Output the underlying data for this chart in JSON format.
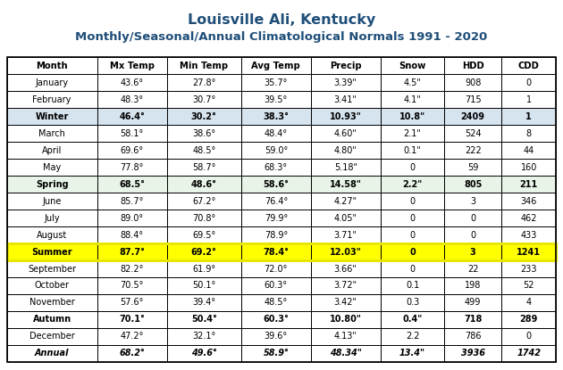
{
  "title1": "Louisville Ali, Kentucky",
  "title2": "Monthly/Seasonal/Annual Climatological Normals 1991 - 2020",
  "headers": [
    "Month",
    "Mx Temp",
    "Min Temp",
    "Avg Temp",
    "Precip",
    "Snow",
    "HDD",
    "CDD"
  ],
  "rows": [
    [
      "January",
      "43.6°",
      "27.8°",
      "35.7°",
      "3.39\"",
      "4.5\"",
      "908",
      "0"
    ],
    [
      "February",
      "48.3°",
      "30.7°",
      "39.5°",
      "3.41\"",
      "4.1\"",
      "715",
      "1"
    ],
    [
      "Winter",
      "46.4°",
      "30.2°",
      "38.3°",
      "10.93\"",
      "10.8\"",
      "2409",
      "1"
    ],
    [
      "March",
      "58.1°",
      "38.6°",
      "48.4°",
      "4.60\"",
      "2.1\"",
      "524",
      "8"
    ],
    [
      "April",
      "69.6°",
      "48.5°",
      "59.0°",
      "4.80\"",
      "0.1\"",
      "222",
      "44"
    ],
    [
      "May",
      "77.8°",
      "58.7°",
      "68.3°",
      "5.18\"",
      "0",
      "59",
      "160"
    ],
    [
      "Spring",
      "68.5°",
      "48.6°",
      "58.6°",
      "14.58\"",
      "2.2\"",
      "805",
      "211"
    ],
    [
      "June",
      "85.7°",
      "67.2°",
      "76.4°",
      "4.27\"",
      "0",
      "3",
      "346"
    ],
    [
      "July",
      "89.0°",
      "70.8°",
      "79.9°",
      "4.05\"",
      "0",
      "0",
      "462"
    ],
    [
      "August",
      "88.4°",
      "69.5°",
      "78.9°",
      "3.71\"",
      "0",
      "0",
      "433"
    ],
    [
      "Summer",
      "87.7°",
      "69.2°",
      "78.4°",
      "12.03\"",
      "0",
      "3",
      "1241"
    ],
    [
      "September",
      "82.2°",
      "61.9°",
      "72.0°",
      "3.66\"",
      "0",
      "22",
      "233"
    ],
    [
      "October",
      "70.5°",
      "50.1°",
      "60.3°",
      "3.72\"",
      "0.1",
      "198",
      "52"
    ],
    [
      "November",
      "57.6°",
      "39.4°",
      "48.5°",
      "3.42\"",
      "0.3",
      "499",
      "4"
    ],
    [
      "Autumn",
      "70.1°",
      "50.4°",
      "60.3°",
      "10.80\"",
      "0.4\"",
      "718",
      "289"
    ],
    [
      "December",
      "47.2°",
      "32.1°",
      "39.6°",
      "4.13\"",
      "2.2",
      "786",
      "0"
    ],
    [
      "Annual",
      "68.2°",
      "49.6°",
      "58.9°",
      "48.34\"",
      "13.4\"",
      "3936",
      "1742"
    ]
  ],
  "row_types": [
    "month",
    "month",
    "winter",
    "month",
    "month",
    "month",
    "spring",
    "month",
    "month",
    "month",
    "summer",
    "month",
    "month",
    "month",
    "autumn",
    "month",
    "annual"
  ],
  "colors": {
    "winter_bg": "#d6e4f0",
    "spring_bg": "#e8f4e8",
    "summer_bg": "#ffff00",
    "autumn_bg": "#ffffff",
    "annual_bg": "#ffffff",
    "month_bg": "#ffffff",
    "header_bg": "#ffffff",
    "title_color": "#1f4e79"
  },
  "col_props": [
    0.148,
    0.114,
    0.122,
    0.114,
    0.114,
    0.105,
    0.093,
    0.09
  ],
  "figsize": [
    6.3,
    4.15
  ],
  "dpi": 100
}
